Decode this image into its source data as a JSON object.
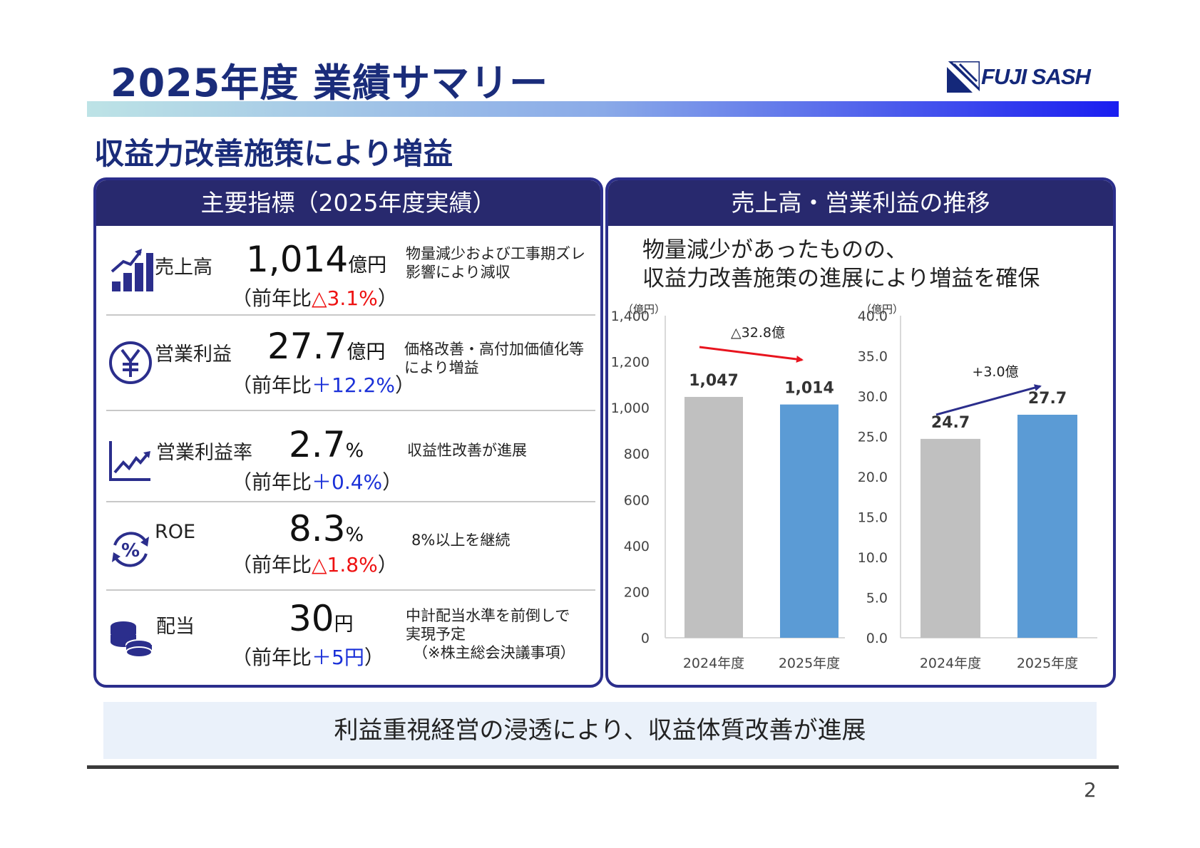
{
  "title": "2025年度 業績サマリー",
  "logo_text": "FUJI SASH",
  "subtitle": "収益力改善施策により増益",
  "left_panel": {
    "heading": "主要指標（2025年度実績）",
    "metrics": [
      {
        "label": "売上高",
        "value": "1,014",
        "unit": "億円",
        "yoy_prefix": "（前年比",
        "yoy_value": "△3.1%",
        "yoy_suffix": "）",
        "yoy_color": "red",
        "note": [
          "物量減少および工事期ズレ",
          "影響により減収"
        ],
        "icon": "bar-growth-icon"
      },
      {
        "label": "営業利益",
        "value": "27.7",
        "unit": "億円",
        "yoy_prefix": "（前年比",
        "yoy_value": "＋12.2%",
        "yoy_suffix": "）",
        "yoy_color": "blue",
        "note": [
          "価格改善・高付加価値化等",
          "により増益"
        ],
        "icon": "yen-icon"
      },
      {
        "label": "営業利益率",
        "value": "2.7",
        "unit": "%",
        "yoy_prefix": "（前年比",
        "yoy_value": "＋0.4%",
        "yoy_suffix": "）",
        "yoy_color": "blue",
        "note": [
          "収益性改善が進展"
        ],
        "icon": "trend-chart-icon"
      },
      {
        "label": "ROE",
        "value": "8.3",
        "unit": "%",
        "yoy_prefix": "（前年比",
        "yoy_value": "△1.8%",
        "yoy_suffix": "）",
        "yoy_color": "red",
        "note": [
          "8%以上を継続"
        ],
        "icon": "percent-cycle-icon"
      },
      {
        "label": "配当",
        "value": "30",
        "unit": "円",
        "yoy_prefix": "（前年比",
        "yoy_value": "＋5円",
        "yoy_suffix": "）",
        "yoy_color": "blue",
        "note": [
          "中計配当水準を前倒しで",
          "実現予定",
          "（※株主総会決議事項）"
        ],
        "icon": "coins-icon"
      }
    ]
  },
  "right_panel": {
    "heading": "売上高・営業利益の推移",
    "lead": [
      "物量減少があったものの、",
      "収益力改善施策の進展により増益を確保"
    ]
  },
  "chart_data": [
    {
      "type": "bar",
      "ylabel": "（億円）",
      "categories": [
        "2024年度",
        "2025年度"
      ],
      "values": [
        1047,
        1014
      ],
      "value_labels": [
        "1,047",
        "1,014"
      ],
      "ylim": [
        0,
        1400
      ],
      "yticks": [
        0,
        200,
        400,
        600,
        800,
        1000,
        1200,
        1400
      ],
      "ytick_labels": [
        "0",
        "200",
        "400",
        "600",
        "800",
        "1,000",
        "1,200",
        "1,400"
      ],
      "bar_colors": [
        "#c0c0c0",
        "#5b9bd5"
      ],
      "annotation": "△32.8億",
      "arrow_color": "#e8141e"
    },
    {
      "type": "bar",
      "ylabel": "（億円）",
      "categories": [
        "2024年度",
        "2025年度"
      ],
      "values": [
        24.7,
        27.7
      ],
      "value_labels": [
        "24.7",
        "27.7"
      ],
      "ylim": [
        0,
        40
      ],
      "yticks": [
        0,
        5,
        10,
        15,
        20,
        25,
        30,
        35,
        40
      ],
      "ytick_labels": [
        "0.0",
        "5.0",
        "10.0",
        "15.0",
        "20.0",
        "25.0",
        "30.0",
        "35.0",
        "40.0"
      ],
      "bar_colors": [
        "#c0c0c0",
        "#5b9bd5"
      ],
      "annotation": "+3.0億",
      "arrow_color": "#2b2e8c"
    }
  ],
  "footer": "利益重視経営の浸透により、収益体質改善が進展",
  "page_number": "2"
}
